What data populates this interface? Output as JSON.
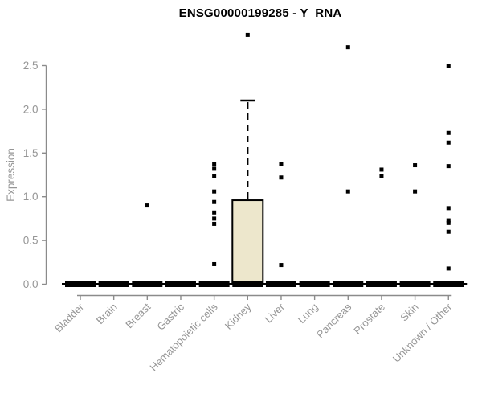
{
  "chart_data": {
    "type": "boxplot",
    "title": "ENSG00000199285 - Y_RNA",
    "ylabel": "Expression",
    "yticks": [
      0.0,
      0.5,
      1.0,
      1.5,
      2.0,
      2.5
    ],
    "ylim": [
      0,
      2.9
    ],
    "grid": false,
    "categories": [
      "Bladder",
      "Brain",
      "Breast",
      "Gastric",
      "Hematopoietic cells",
      "Kidney",
      "Liver",
      "Lung",
      "Pancreas",
      "Prostate",
      "Skin",
      "Unknown / Other"
    ],
    "boxes": [
      {
        "category": "Bladder",
        "q1": 0,
        "median": 0,
        "q3": 0,
        "whisker_low": 0,
        "whisker_high": 0,
        "outliers": []
      },
      {
        "category": "Brain",
        "q1": 0,
        "median": 0,
        "q3": 0,
        "whisker_low": 0,
        "whisker_high": 0,
        "outliers": []
      },
      {
        "category": "Breast",
        "q1": 0,
        "median": 0,
        "q3": 0,
        "whisker_low": 0,
        "whisker_high": 0,
        "outliers": [
          0.9
        ]
      },
      {
        "category": "Gastric",
        "q1": 0,
        "median": 0,
        "q3": 0,
        "whisker_low": 0,
        "whisker_high": 0,
        "outliers": []
      },
      {
        "category": "Hematopoietic cells",
        "q1": 0,
        "median": 0,
        "q3": 0,
        "whisker_low": 0,
        "whisker_high": 0,
        "outliers": [
          1.37,
          1.32,
          1.24,
          1.06,
          0.94,
          0.82,
          0.75,
          0.69,
          0.23
        ]
      },
      {
        "category": "Kidney",
        "q1": 0,
        "median": 0,
        "q3": 0.96,
        "whisker_low": 0,
        "whisker_high": 2.1,
        "outliers": [
          2.85
        ]
      },
      {
        "category": "Liver",
        "q1": 0,
        "median": 0,
        "q3": 0,
        "whisker_low": 0,
        "whisker_high": 0,
        "outliers": [
          1.37,
          1.22,
          0.22
        ]
      },
      {
        "category": "Lung",
        "q1": 0,
        "median": 0,
        "q3": 0,
        "whisker_low": 0,
        "whisker_high": 0,
        "outliers": []
      },
      {
        "category": "Pancreas",
        "q1": 0,
        "median": 0,
        "q3": 0,
        "whisker_low": 0,
        "whisker_high": 0,
        "outliers": [
          2.71,
          1.06
        ]
      },
      {
        "category": "Prostate",
        "q1": 0,
        "median": 0,
        "q3": 0,
        "whisker_low": 0,
        "whisker_high": 0,
        "outliers": [
          1.31,
          1.24
        ]
      },
      {
        "category": "Skin",
        "q1": 0,
        "median": 0,
        "q3": 0,
        "whisker_low": 0,
        "whisker_high": 0,
        "outliers": [
          1.36,
          1.06
        ]
      },
      {
        "category": "Unknown / Other",
        "q1": 0,
        "median": 0,
        "q3": 0,
        "whisker_low": 0,
        "whisker_high": 0,
        "outliers": [
          2.5,
          1.73,
          1.62,
          1.35,
          0.87,
          0.73,
          0.7,
          0.6,
          0.18
        ]
      }
    ],
    "colors": {
      "background": "#FFFFFF",
      "box_fill": "#EDE7CC",
      "box_border": "#000000",
      "median": "#000000",
      "whisker": "#000000",
      "point": "#000000",
      "axis": "#8B8B8B",
      "tick_label": "#969696",
      "title": "#000000"
    }
  }
}
